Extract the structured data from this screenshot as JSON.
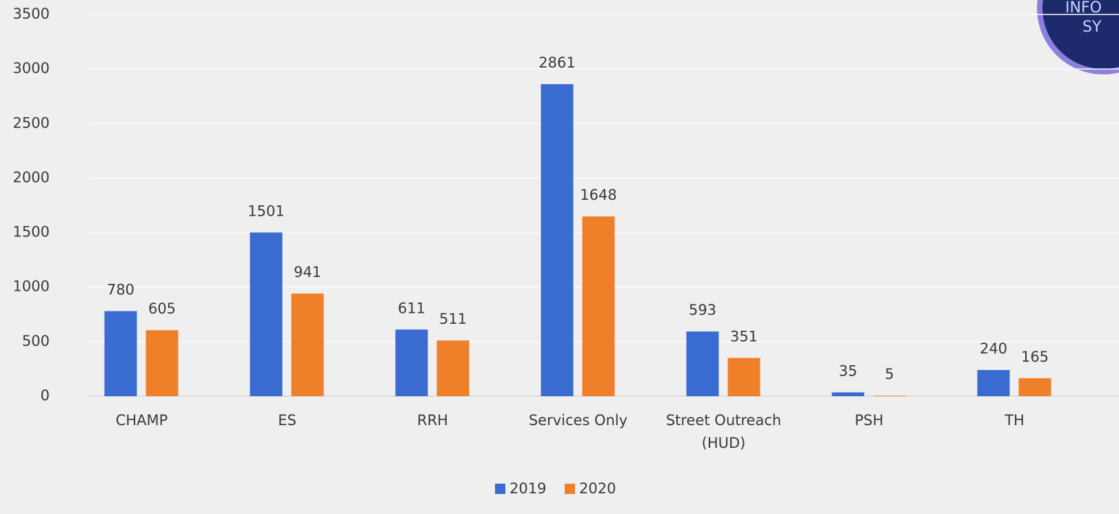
{
  "chart_data": {
    "type": "bar",
    "categories": [
      "CHAMP",
      "ES",
      "RRH",
      "Services Only",
      "Street Outreach (HUD)",
      "PSH",
      "TH"
    ],
    "series": [
      {
        "name": "2019",
        "color": "#3a6bd0",
        "values": [
          780,
          1501,
          611,
          2861,
          593,
          35,
          240
        ]
      },
      {
        "name": "2020",
        "color": "#f07f2a",
        "values": [
          605,
          941,
          511,
          1648,
          351,
          5,
          165
        ]
      }
    ],
    "ylim": [
      0,
      3500
    ],
    "yticks": [
      0,
      500,
      1000,
      1500,
      2000,
      2500,
      3000,
      3500
    ],
    "grid": true,
    "legend": "bottom"
  },
  "logo": {
    "lines": [
      "INFO",
      "SY"
    ]
  }
}
